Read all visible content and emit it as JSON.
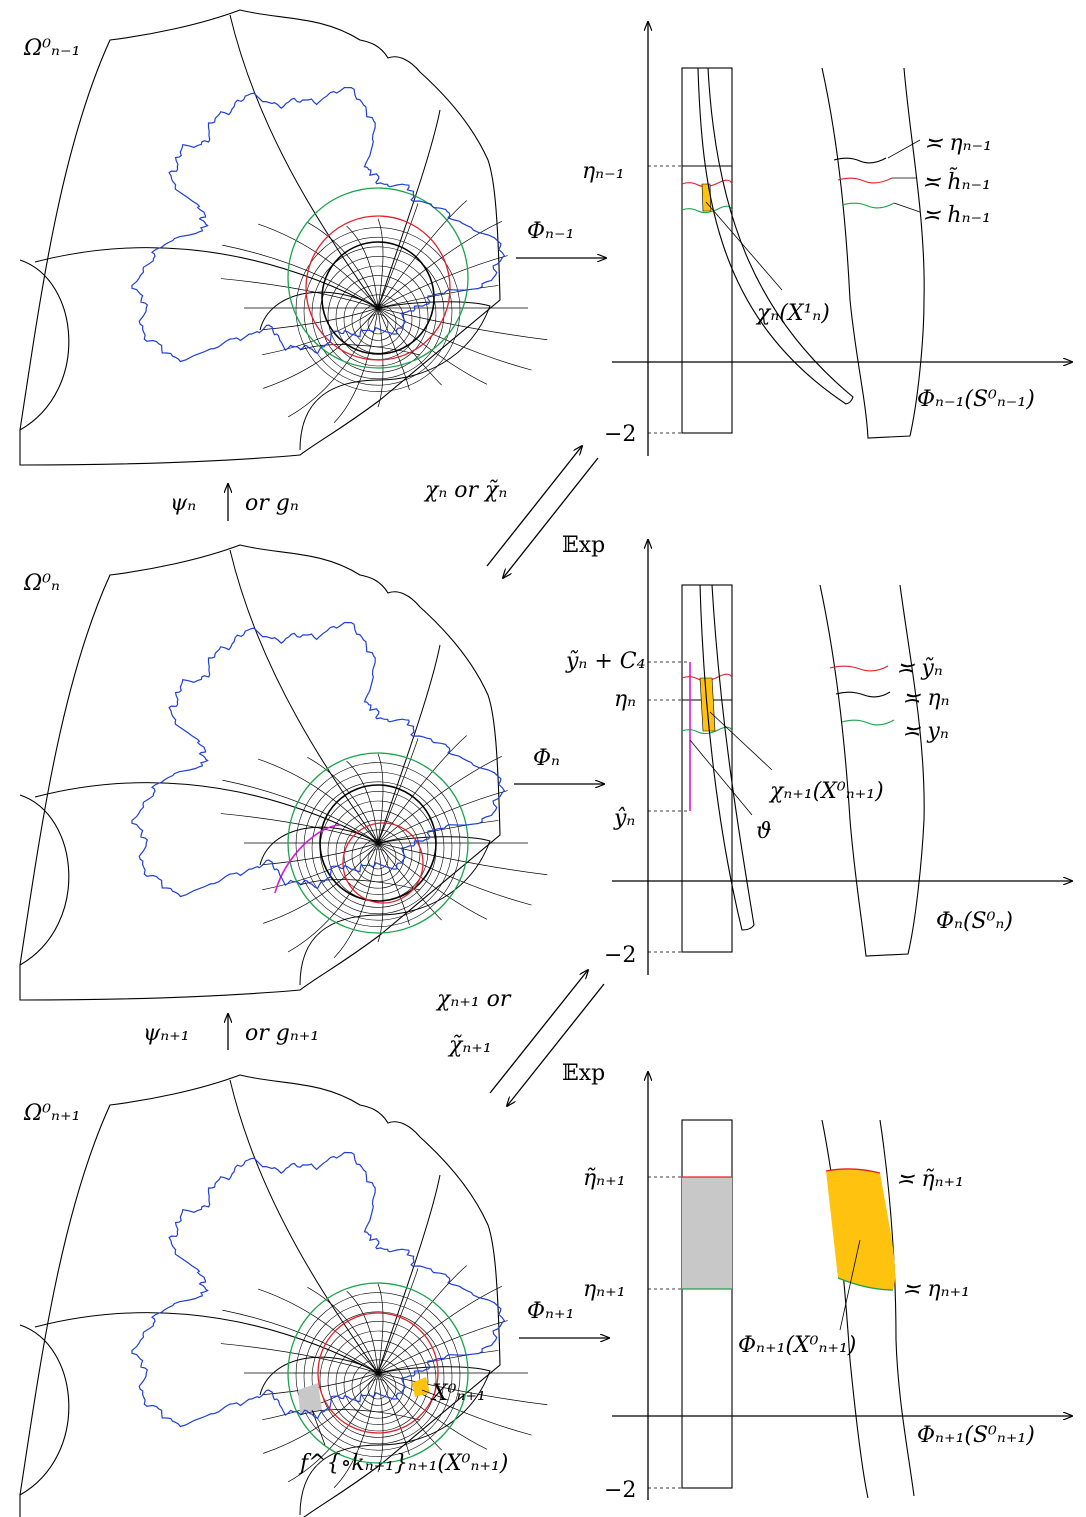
{
  "colors": {
    "julia": "#1f3fd6",
    "green": "#1aa34a",
    "red": "#e0202a",
    "magenta": "#d81ad8",
    "orange": "#ffc20e",
    "gray": "#c8c8c8",
    "black": "#000000"
  },
  "panels": {
    "top": {
      "domain_label": "Ω⁰ₙ₋₁",
      "map_label": "Φₙ₋₁",
      "tick_eta": "ηₙ₋₁",
      "tick_minus2": "−2",
      "curve_labels": [
        "≍ ηₙ₋₁",
        "≍ h̃ₙ₋₁",
        "≍ hₙ₋₁"
      ],
      "pointer_label": "χₙ(X¹ₙ)",
      "strip_label": "Φₙ₋₁(S⁰ₙ₋₁)"
    },
    "middle": {
      "domain_label": "Ω⁰ₙ",
      "map_label": "Φₙ",
      "tick_top": "ỹₙ + C₄",
      "tick_eta": "ηₙ",
      "tick_hat": "ŷₙ",
      "tick_minus2": "−2",
      "curve_labels": [
        "≍ ỹₙ",
        "≍ ηₙ",
        "≍ yₙ"
      ],
      "pointer_label": "χₙ₊₁(X⁰ₙ₊₁)",
      "theta_label": "ϑ",
      "strip_label": "Φₙ(S⁰ₙ)"
    },
    "bottom": {
      "domain_label": "Ω⁰ₙ₊₁",
      "map_label": "Φₙ₊₁",
      "tick_eta_tilde": "η̃ₙ₊₁",
      "tick_eta": "ηₙ₊₁",
      "tick_minus2": "−2",
      "curve_labels": [
        "≍ η̃ₙ₊₁",
        "≍ ηₙ₊₁"
      ],
      "pointer_label": "Φₙ₊₁(X⁰ₙ₊₁)",
      "strip_label": "Φₙ₊₁(S⁰ₙ₊₁)",
      "x_label": "X⁰ₙ₊₁",
      "f_label": "f^{∘kₙ₊₁}ₙ₊₁(X⁰ₙ₊₁)"
    }
  },
  "connectors": {
    "psi1": "ψₙ",
    "or1": "or gₙ",
    "psi2": "ψₙ₊₁",
    "or2": "or gₙ₊₁",
    "chi1": "χₙ or χ̃ₙ",
    "exp1": "𝔼xp",
    "chi2a": "χₙ₊₁ or",
    "chi2b": "χ̃ₙ₊₁",
    "exp2": "𝔼xp"
  }
}
